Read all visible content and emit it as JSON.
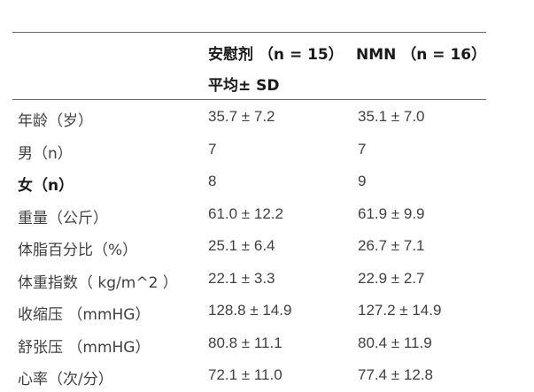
{
  "table": {
    "header": {
      "placebo_line1": "安慰剂 （n = 15）",
      "placebo_line2": "平均± SD",
      "nmn_line1": "NMN （n = 16）"
    },
    "rows": [
      {
        "label": "年龄（岁）",
        "placebo": "35.7 ± 7.2",
        "nmn": "35.1 ± 7.0"
      },
      {
        "label": "男（n）",
        "placebo": "7",
        "nmn": "7"
      },
      {
        "label": "女（n）",
        "placebo": "8",
        "nmn": "9"
      },
      {
        "label": "重量（公斤）",
        "placebo": "61.0 ± 12.2",
        "nmn": "61.9 ± 9.9"
      },
      {
        "label": "体脂百分比（%）",
        "placebo": "25.1 ± 6.4",
        "nmn": "26.7 ± 7.1"
      },
      {
        "label": "体重指数（ kg/m^2 ）",
        "placebo": "22.1 ± 3.3",
        "nmn": "22.9 ± 2.7"
      },
      {
        "label": "收缩压 （mmHG）",
        "placebo": "128.8 ± 14.9",
        "nmn": "127.2 ± 14.9"
      },
      {
        "label": "舒张压 （mmHG）",
        "placebo": "80.8 ± 11.1",
        "nmn": "80.4 ± 11.9"
      },
      {
        "label": "心率（次/分）",
        "placebo": "72.1 ± 11.0",
        "nmn": "77.4 ± 12.8"
      }
    ]
  }
}
